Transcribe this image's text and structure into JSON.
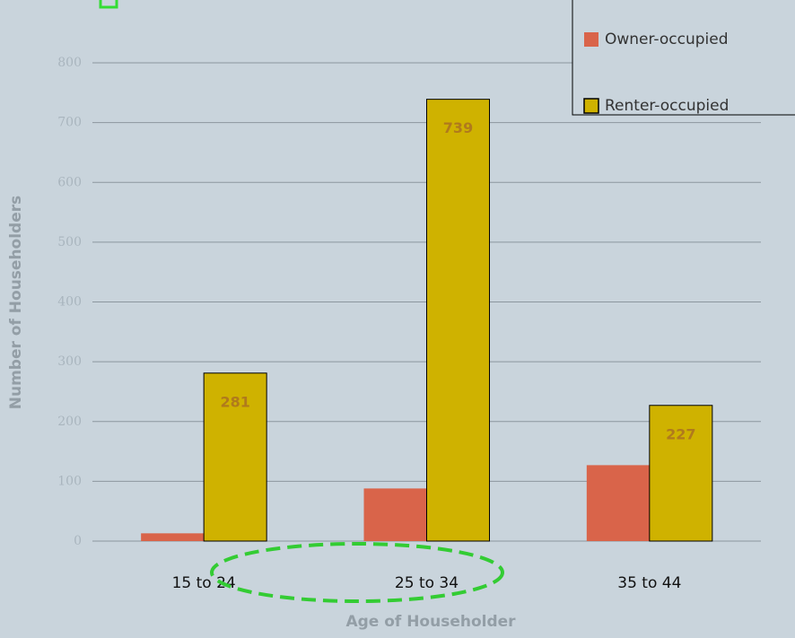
{
  "chart_data": {
    "type": "bar",
    "x_label": "Age of Householder",
    "y_label": "Number of Householders",
    "categories": [
      "15 to 24",
      "25 to 34",
      "35 to 44"
    ],
    "series": [
      {
        "name": "Owner-occupied",
        "color": "#d9644a",
        "values": [
          13,
          88,
          127
        ],
        "show_labels": false
      },
      {
        "name": "Renter-occupied",
        "color": "#cfb200",
        "values": [
          281,
          739,
          227
        ],
        "show_labels": true
      }
    ],
    "ylim": [
      0,
      800
    ],
    "yticks": [
      0,
      100,
      200,
      300,
      400,
      500,
      600,
      700,
      800
    ],
    "grid": true,
    "legend": "top-right"
  }
}
